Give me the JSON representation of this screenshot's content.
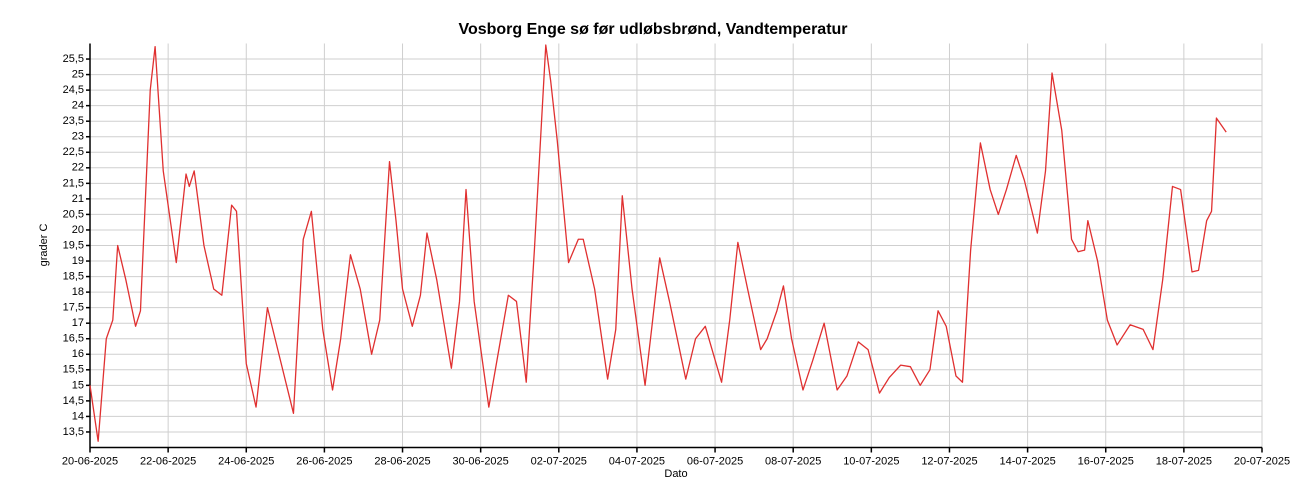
{
  "chart_data": {
    "type": "line",
    "title": "Vosborg Enge sø før udløbsbrønd, Vandtemperatur",
    "x_label": "Dato",
    "y_label": "grader C",
    "color": "#e03030",
    "x": [
      "2025-06-20 00:00",
      "2025-06-20 05:00",
      "2025-06-20 10:00",
      "2025-06-20 14:00",
      "2025-06-20 17:00",
      "2025-06-20 22:00",
      "2025-06-21 04:00",
      "2025-06-21 07:00",
      "2025-06-21 13:00",
      "2025-06-21 16:00",
      "2025-06-21 21:00",
      "2025-06-22 05:00",
      "2025-06-22 11:00",
      "2025-06-22 13:00",
      "2025-06-22 16:00",
      "2025-06-22 22:00",
      "2025-06-23 04:00",
      "2025-06-23 09:00",
      "2025-06-23 15:00",
      "2025-06-23 18:00",
      "2025-06-24 00:00",
      "2025-06-24 06:00",
      "2025-06-24 13:00",
      "2025-06-24 21:00",
      "2025-06-25 05:00",
      "2025-06-25 11:00",
      "2025-06-25 16:00",
      "2025-06-25 23:00",
      "2025-06-26 05:00",
      "2025-06-26 10:00",
      "2025-06-26 16:00",
      "2025-06-26 22:00",
      "2025-06-27 05:00",
      "2025-06-27 10:00",
      "2025-06-27 16:00",
      "2025-06-27 20:00",
      "2025-06-28 00:00",
      "2025-06-28 06:00",
      "2025-06-28 11:00",
      "2025-06-28 15:00",
      "2025-06-28 21:00",
      "2025-06-29 06:00",
      "2025-06-29 11:00",
      "2025-06-29 15:00",
      "2025-06-29 20:00",
      "2025-06-30 05:00",
      "2025-06-30 10:00",
      "2025-06-30 17:00",
      "2025-06-30 22:00",
      "2025-07-01 04:00",
      "2025-07-01 09:00",
      "2025-07-01 16:00",
      "2025-07-01 19:00",
      "2025-07-01 23:00",
      "2025-07-02 06:00",
      "2025-07-02 12:00",
      "2025-07-02 15:00",
      "2025-07-02 22:00",
      "2025-07-03 06:00",
      "2025-07-03 11:00",
      "2025-07-03 15:00",
      "2025-07-03 21:00",
      "2025-07-04 05:00",
      "2025-07-04 09:00",
      "2025-07-04 14:00",
      "2025-07-04 20:00",
      "2025-07-05 06:00",
      "2025-07-05 12:00",
      "2025-07-05 18:00",
      "2025-07-05 23:00",
      "2025-07-06 04:00",
      "2025-07-06 09:00",
      "2025-07-06 14:00",
      "2025-07-06 20:00",
      "2025-07-07 04:00",
      "2025-07-07 08:00",
      "2025-07-07 14:00",
      "2025-07-07 18:00",
      "2025-07-07 23:00",
      "2025-07-08 06:00",
      "2025-07-08 12:00",
      "2025-07-08 19:00",
      "2025-07-09 03:00",
      "2025-07-09 09:00",
      "2025-07-09 16:00",
      "2025-07-09 22:00",
      "2025-07-10 05:00",
      "2025-07-10 11:00",
      "2025-07-10 18:00",
      "2025-07-11 00:00",
      "2025-07-11 06:00",
      "2025-07-11 12:00",
      "2025-07-11 17:00",
      "2025-07-11 22:00",
      "2025-07-12 04:00",
      "2025-07-12 08:00",
      "2025-07-12 13:00",
      "2025-07-12 19:00",
      "2025-07-13 01:00",
      "2025-07-13 06:00",
      "2025-07-13 11:00",
      "2025-07-13 17:00",
      "2025-07-13 22:00",
      "2025-07-14 06:00",
      "2025-07-14 11:00",
      "2025-07-14 15:00",
      "2025-07-14 21:00",
      "2025-07-15 03:00",
      "2025-07-15 07:00",
      "2025-07-15 11:00",
      "2025-07-15 13:00",
      "2025-07-15 19:00",
      "2025-07-16 01:00",
      "2025-07-16 07:00",
      "2025-07-16 15:00",
      "2025-07-16 23:00",
      "2025-07-17 05:00",
      "2025-07-17 11:00",
      "2025-07-17 17:00",
      "2025-07-17 22:00",
      "2025-07-18 05:00",
      "2025-07-18 09:00",
      "2025-07-18 14:00",
      "2025-07-18 17:00",
      "2025-07-18 20:00",
      "2025-07-19 02:00"
    ],
    "values": [
      15.0,
      13.2,
      16.5,
      17.1,
      19.5,
      18.4,
      16.9,
      17.4,
      24.5,
      25.9,
      21.9,
      18.95,
      21.8,
      21.4,
      21.9,
      19.5,
      18.1,
      17.9,
      20.8,
      20.6,
      15.7,
      14.3,
      17.5,
      15.8,
      14.1,
      19.7,
      20.6,
      16.8,
      14.85,
      16.5,
      19.2,
      18.1,
      16.0,
      17.1,
      22.2,
      20.3,
      18.1,
      16.9,
      17.9,
      19.9,
      18.4,
      15.55,
      17.7,
      21.3,
      17.7,
      14.3,
      15.8,
      17.9,
      17.7,
      15.1,
      19.35,
      25.95,
      24.8,
      22.9,
      18.95,
      19.7,
      19.7,
      18.1,
      15.2,
      16.8,
      21.1,
      18.1,
      15.0,
      16.8,
      19.1,
      17.7,
      15.2,
      16.5,
      16.9,
      16.0,
      15.1,
      17.1,
      19.6,
      18.1,
      16.15,
      16.5,
      17.4,
      18.2,
      16.5,
      14.85,
      15.8,
      17.0,
      14.85,
      15.3,
      16.4,
      16.15,
      14.75,
      15.25,
      15.65,
      15.6,
      15.0,
      15.5,
      17.4,
      16.9,
      15.3,
      15.1,
      19.35,
      22.8,
      21.3,
      20.5,
      21.3,
      22.4,
      21.6,
      19.9,
      21.9,
      25.05,
      23.2,
      19.7,
      19.3,
      19.35,
      20.3,
      19.0,
      17.1,
      16.3,
      16.95,
      16.8,
      16.15,
      18.4,
      21.4,
      21.3,
      18.65,
      18.7,
      20.3,
      20.6,
      23.6,
      23.15
    ],
    "xlim": [
      "2025-06-20 00:00",
      "2025-07-20 00:00"
    ],
    "xticks": [
      {
        "value": "2025-06-20 00:00",
        "label": "20-06-2025"
      },
      {
        "value": "2025-06-22 00:00",
        "label": "22-06-2025"
      },
      {
        "value": "2025-06-24 00:00",
        "label": "24-06-2025"
      },
      {
        "value": "2025-06-26 00:00",
        "label": "26-06-2025"
      },
      {
        "value": "2025-06-28 00:00",
        "label": "28-06-2025"
      },
      {
        "value": "2025-06-30 00:00",
        "label": "30-06-2025"
      },
      {
        "value": "2025-07-02 00:00",
        "label": "02-07-2025"
      },
      {
        "value": "2025-07-04 00:00",
        "label": "04-07-2025"
      },
      {
        "value": "2025-07-06 00:00",
        "label": "06-07-2025"
      },
      {
        "value": "2025-07-08 00:00",
        "label": "08-07-2025"
      },
      {
        "value": "2025-07-10 00:00",
        "label": "10-07-2025"
      },
      {
        "value": "2025-07-12 00:00",
        "label": "12-07-2025"
      },
      {
        "value": "2025-07-14 00:00",
        "label": "14-07-2025"
      },
      {
        "value": "2025-07-16 00:00",
        "label": "16-07-2025"
      },
      {
        "value": "2025-07-18 00:00",
        "label": "18-07-2025"
      },
      {
        "value": "2025-07-20 00:00",
        "label": "20-07-2025"
      }
    ],
    "ylim": [
      13,
      26
    ],
    "yticks": [
      {
        "value": 13.5,
        "label": "13,5"
      },
      14,
      {
        "value": 14.5,
        "label": "14,5"
      },
      15,
      {
        "value": 15.5,
        "label": "15,5"
      },
      16,
      {
        "value": 16.5,
        "label": "16,5"
      },
      17,
      {
        "value": 17.5,
        "label": "17,5"
      },
      18,
      {
        "value": 18.5,
        "label": "18,5"
      },
      19,
      {
        "value": 19.5,
        "label": "19,5"
      },
      20,
      {
        "value": 20.5,
        "label": "20,5"
      },
      21,
      {
        "value": 21.5,
        "label": "21,5"
      },
      22,
      {
        "value": 22.5,
        "label": "22,5"
      },
      23,
      {
        "value": 23.5,
        "label": "23,5"
      },
      24,
      {
        "value": 24.5,
        "label": "24,5"
      },
      25,
      {
        "value": 25.5,
        "label": "25,5"
      }
    ],
    "grid": true
  }
}
